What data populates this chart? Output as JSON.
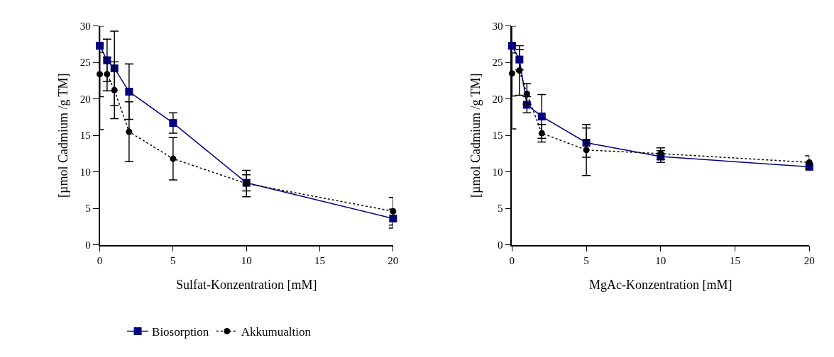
{
  "chart_data": [
    {
      "type": "line",
      "xlabel": "Sulfat-Konzentration [mM]",
      "ylabel": "[µmol Cadmium /g TM]",
      "x": [
        0,
        0.5,
        1,
        2,
        5,
        10,
        20
      ],
      "xlim": [
        0,
        20
      ],
      "xticks": [
        0,
        5,
        10,
        15,
        20
      ],
      "ylim": [
        0,
        30
      ],
      "yticks": [
        0,
        5,
        10,
        15,
        20,
        25,
        30
      ],
      "legend": "bottom",
      "series": [
        {
          "name": "Biosorption",
          "color": "#000080",
          "marker": "square",
          "line_style": "solid",
          "values": [
            27.3,
            25.3,
            24.2,
            21.0,
            16.7,
            8.5,
            3.6
          ],
          "errors": [
            [
              20.3,
              30
            ],
            2.9,
            5.1,
            3.8,
            1.4,
            1.1,
            1.3
          ]
        },
        {
          "name": "Akkumualtion",
          "color": "#000000",
          "marker": "circle",
          "line_style": "dotted",
          "values": [
            23.4,
            23.4,
            21.2,
            15.5,
            11.8,
            8.4,
            4.6
          ],
          "errors": [
            [
              15.8,
              26.4
            ],
            2.3,
            3.9,
            4.1,
            2.9,
            1.8,
            1.9
          ]
        }
      ]
    },
    {
      "type": "line",
      "xlabel": "MgAc-Konzentration [mM]",
      "ylabel": "[µmol Cadmium /g TM]",
      "x": [
        0,
        0.5,
        1,
        2,
        5,
        10,
        20
      ],
      "xlim": [
        0,
        20
      ],
      "xticks": [
        0,
        5,
        10,
        15,
        20
      ],
      "ylim": [
        0,
        30
      ],
      "yticks": [
        0,
        5,
        10,
        15,
        20,
        25,
        30
      ],
      "series": [
        {
          "color": "#000080",
          "marker": "square",
          "line_style": "solid",
          "values": [
            27.3,
            25.4,
            19.2,
            17.6,
            14.0,
            12.1,
            10.7
          ],
          "errors": [
            [
              20.4,
              30
            ],
            1.4,
            1.1,
            3.0,
            2.0,
            0.8,
            null
          ]
        },
        {
          "color": "#000000",
          "marker": "circle",
          "line_style": "dotted",
          "values": [
            23.5,
            23.9,
            20.7,
            15.3,
            13.0,
            12.5,
            11.3
          ],
          "errors": [
            [
              15.9,
              26.3
            ],
            3.4,
            1.4,
            1.2,
            3.5,
            0.8,
            0.9
          ]
        }
      ]
    }
  ]
}
